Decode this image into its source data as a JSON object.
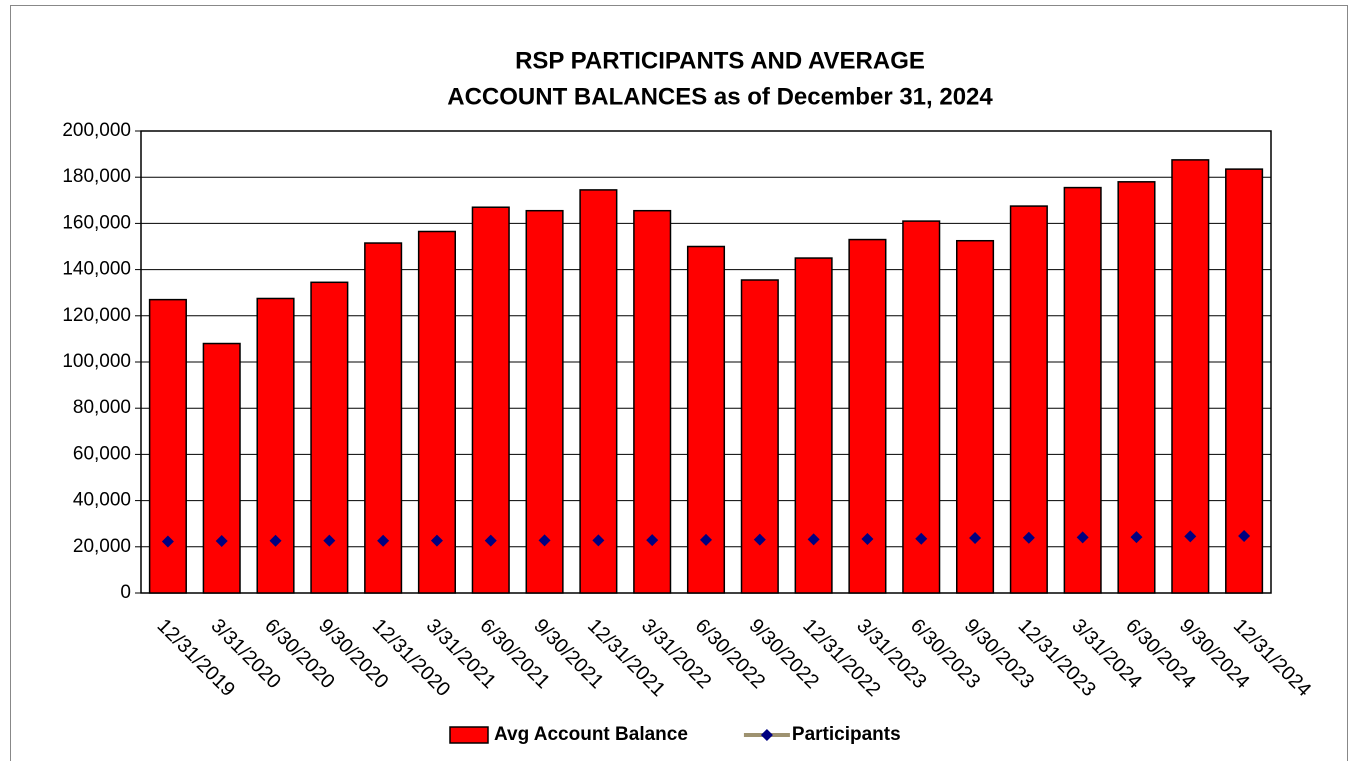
{
  "chart_data": {
    "type": "bar",
    "title": [
      "RSP PARTICIPANTS AND AVERAGE",
      "ACCOUNT BALANCES as of December 31, 2024"
    ],
    "categories": [
      "12/31/2019",
      "3/31/2020",
      "6/30/2020",
      "9/30/2020",
      "12/31/2020",
      "3/31/2021",
      "6/30/2021",
      "9/30/2021",
      "12/31/2021",
      "3/31/2022",
      "6/30/2022",
      "9/30/2022",
      "12/31/2022",
      "3/31/2023",
      "6/30/2023",
      "9/30/2023",
      "12/31/2023",
      "3/31/2024",
      "6/30/2024",
      "9/30/2024",
      "12/31/2024"
    ],
    "series": [
      {
        "name": "Avg Account Balance",
        "type": "bar",
        "color": "#ff0000",
        "values": [
          127000,
          108000,
          127500,
          134500,
          151500,
          156500,
          167000,
          165500,
          174500,
          165500,
          150000,
          135500,
          145000,
          153000,
          161000,
          152500,
          167500,
          175500,
          178000,
          187500,
          183500
        ]
      },
      {
        "name": "Participants",
        "type": "line",
        "color": "#9e9270",
        "marker_color": "#000080",
        "values": [
          22300,
          22500,
          22600,
          22700,
          22600,
          22700,
          22700,
          22800,
          22800,
          22900,
          23000,
          23100,
          23200,
          23400,
          23500,
          23800,
          23900,
          24100,
          24200,
          24500,
          24700
        ]
      }
    ],
    "ylim": [
      0,
      200000
    ],
    "yticks": [
      0,
      {
        "value": 20000,
        "label": "20,000"
      },
      {
        "value": 40000,
        "label": "40,000"
      },
      {
        "value": 60000,
        "label": "60,000"
      },
      {
        "value": 80000,
        "label": "80,000"
      },
      {
        "value": 100000,
        "label": "100,000"
      },
      {
        "value": 120000,
        "label": "120,000"
      },
      {
        "value": 140000,
        "label": "140,000"
      },
      {
        "value": 160000,
        "label": "160,000"
      },
      {
        "value": 180000,
        "label": "180,000"
      },
      {
        "value": 200000,
        "label": "200,000"
      }
    ],
    "grid": true,
    "legend": "bottom"
  }
}
